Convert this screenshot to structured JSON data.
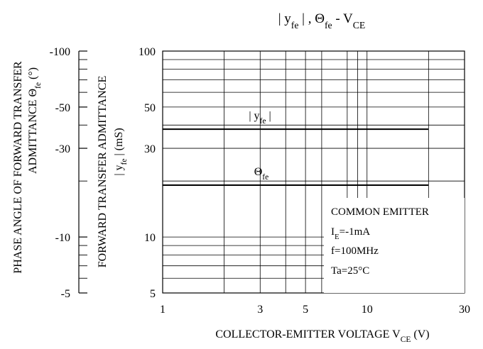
{
  "chart_data": {
    "type": "line",
    "title": "| yfe | , Θfe - VCE",
    "title_parts": {
      "pre": "| y",
      "s1": "fe",
      "mid": " | , Θ",
      "s2": "fe",
      "dash": " - V",
      "s3": "CE"
    },
    "xlabel": {
      "text": "COLLECTOR-EMITTER VOLTAGE V",
      "sub": "CE",
      "unit": " (V)"
    },
    "ylabel_right": {
      "line1": "FORWARD TRANSFER ADMITTANCE",
      "line2_pre": "| y",
      "line2_sub": "fe",
      "line2_post": " | (mS)"
    },
    "ylabel_left": {
      "line1": "PHASE ANGLE OF FORWARD TRANSFER",
      "line2_pre": "ADMITTANCE Θ",
      "line2_sub": "fe",
      "line2_post": " (°)"
    },
    "x_scale": "log",
    "xlim": [
      1,
      30
    ],
    "x_ticks": [
      1,
      3,
      5,
      10,
      30
    ],
    "x_tick_labels": [
      "1",
      "3",
      "5",
      "10",
      "30"
    ],
    "x_grid": [
      2,
      3,
      4,
      5,
      6,
      8,
      9,
      10,
      20
    ],
    "y_scale": "log",
    "ylim": [
      5,
      100
    ],
    "y_ticks": [
      5,
      10,
      30,
      50,
      100
    ],
    "y_tick_labels": [
      "5",
      "10",
      "30",
      "50",
      "100"
    ],
    "y_grid": [
      6,
      7,
      8,
      9,
      10,
      20,
      30,
      40,
      50,
      60,
      70,
      80,
      90
    ],
    "y2_scale": "log",
    "y2_lim": [
      -5,
      -100
    ],
    "y2_ticks": [
      -5,
      -10,
      -30,
      -50,
      -100
    ],
    "y2_tick_labels": [
      "-5",
      "-10",
      "-30",
      "-50",
      "-100"
    ],
    "y2_minor": [
      -6,
      -7,
      -8,
      -9,
      -20,
      -40,
      -60,
      -70,
      -80,
      -90
    ],
    "grid": true,
    "series": [
      {
        "name": "| yfe |",
        "label_pre": "| y",
        "label_sub": "fe",
        "label_post": " |",
        "x": [
          1,
          20
        ],
        "y": [
          38,
          38
        ],
        "axis": "right"
      },
      {
        "name": "Θfe",
        "label_pre": "Θ",
        "label_sub": "fe",
        "label_post": "",
        "x": [
          1,
          20
        ],
        "y": [
          19,
          19
        ],
        "axis": "left_equiv_deg",
        "value_deg": -19
      }
    ],
    "annotation": {
      "line1": "COMMON EMITTER",
      "line2_pre": "I",
      "line2_sub": "E",
      "line2_post": "=-1mA",
      "line3": "f=100MHz",
      "line4": "Ta=25°C"
    }
  }
}
